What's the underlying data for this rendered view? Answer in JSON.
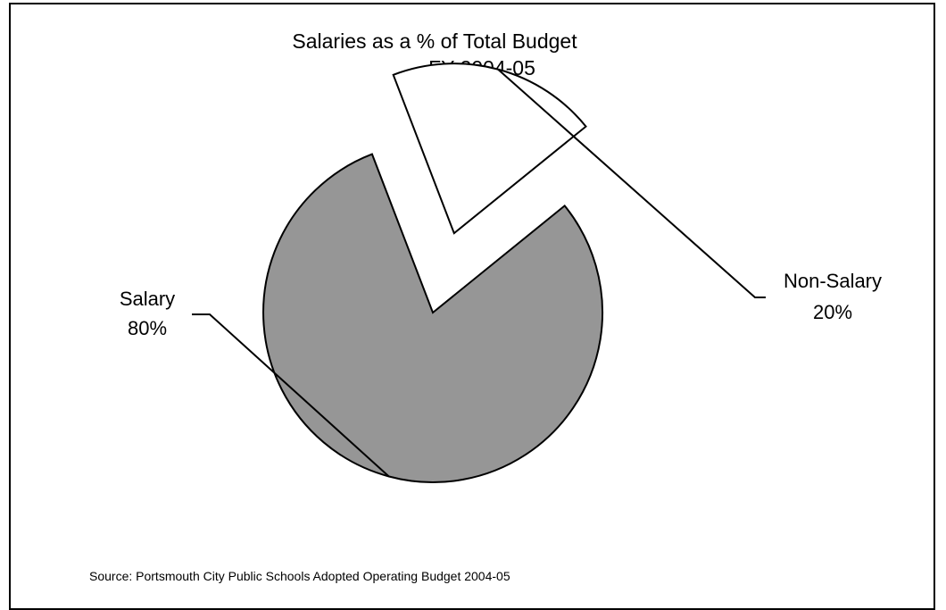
{
  "chart_data": {
    "type": "pie",
    "title": "Salaries as a % of Total Budget",
    "subtitle": "FY 2004-05",
    "slices": [
      {
        "label": "Salary",
        "value": 80,
        "value_label": "80%",
        "color": "#969696",
        "exploded": false
      },
      {
        "label": "Non-Salary",
        "value": 20,
        "value_label": "20%",
        "color": "#ffffff",
        "exploded": true
      }
    ],
    "legend": "none",
    "source": "Source: Portsmouth City Public Schools Adopted Operating Budget 2004-05"
  }
}
